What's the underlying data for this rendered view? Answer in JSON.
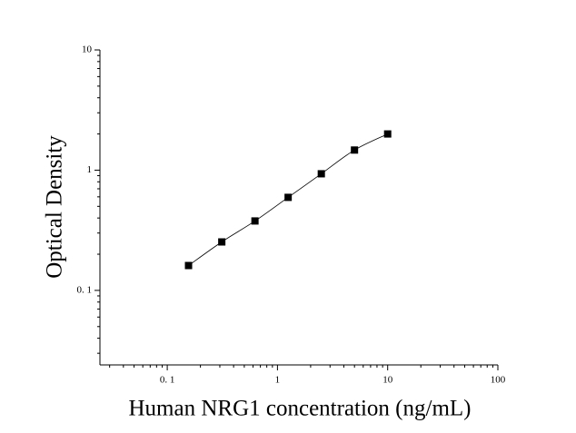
{
  "chart_data": {
    "type": "scatter",
    "xlabel": "Human NRG1 concentration (ng/mL)",
    "ylabel": "Optical Density",
    "xscale": "log",
    "yscale": "log",
    "x": [
      0.156,
      0.3125,
      0.625,
      1.25,
      2.5,
      5,
      10
    ],
    "series": [
      {
        "color": "#000000",
        "values": [
          0.161,
          0.253,
          0.378,
          0.594,
          0.933,
          1.47,
          2.0
        ]
      }
    ],
    "fit_curve": true,
    "xlim": [
      0.0245,
      100
    ],
    "ylim": [
      0.024,
      10
    ],
    "xticks": [
      {
        "value": 0.1,
        "label": "0. 1"
      },
      1,
      10,
      100
    ],
    "yticks": [
      {
        "value": 0.1,
        "label": "0. 1"
      },
      1,
      10
    ],
    "xminorticks": [
      0.03,
      0.04,
      0.05,
      0.06,
      0.07,
      0.08,
      0.09,
      0.2,
      0.3,
      0.4,
      0.5,
      0.6,
      0.7,
      0.8,
      0.9,
      2,
      3,
      4,
      5,
      6,
      7,
      8,
      9,
      20,
      30,
      40,
      50,
      60,
      70,
      80,
      90
    ],
    "yminorticks": [
      0.03,
      0.04,
      0.05,
      0.06,
      0.07,
      0.08,
      0.09,
      0.2,
      0.3,
      0.4,
      0.5,
      0.6,
      0.7,
      0.8,
      0.9,
      2,
      3,
      4,
      5,
      6,
      7,
      8,
      9
    ]
  }
}
